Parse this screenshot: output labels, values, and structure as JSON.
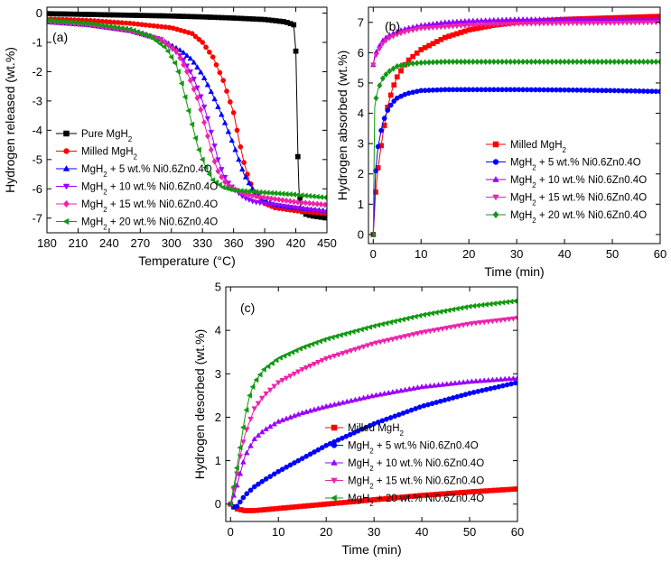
{
  "chart_data": [
    {
      "panel": "(a)",
      "type": "line",
      "xlabel": "Temperature (°C)",
      "ylabel": "Hydrogen released (wt.%)",
      "xlim": [
        180,
        450
      ],
      "ylim": [
        -7.5,
        0.2
      ],
      "xticks": [
        180,
        210,
        240,
        270,
        300,
        330,
        360,
        390,
        420,
        450
      ],
      "yticks": [
        0,
        -1,
        -2,
        -3,
        -4,
        -5,
        -6,
        -7
      ],
      "legend_position": "bottom-left",
      "series": [
        {
          "name": "Pure MgH2",
          "label_main": "Pure MgH",
          "label_sub": "2",
          "label_tail": "",
          "color": "#000000",
          "marker": "square",
          "x": [
            180,
            210,
            240,
            270,
            300,
            330,
            360,
            390,
            410,
            418,
            420,
            421,
            422,
            423,
            425,
            428,
            435,
            450
          ],
          "y": [
            -0.02,
            -0.04,
            -0.06,
            -0.08,
            -0.1,
            -0.13,
            -0.17,
            -0.22,
            -0.3,
            -0.4,
            -1.3,
            -3.0,
            -4.9,
            -6.0,
            -6.7,
            -6.85,
            -6.92,
            -7.0
          ]
        },
        {
          "name": "Milled MgH2",
          "label_main": "Milled MgH",
          "label_sub": "2",
          "label_tail": "",
          "color": "#ff0000",
          "marker": "circle",
          "x": [
            180,
            220,
            260,
            300,
            320,
            330,
            340,
            350,
            360,
            365,
            370,
            375,
            380,
            390,
            400,
            420,
            450
          ],
          "y": [
            -0.2,
            -0.25,
            -0.35,
            -0.5,
            -0.7,
            -1.0,
            -1.5,
            -2.3,
            -3.4,
            -4.3,
            -5.1,
            -5.7,
            -6.1,
            -6.5,
            -6.65,
            -6.75,
            -6.85
          ]
        },
        {
          "name": "MgH2 + 5 wt.% Ni0.6Zn0.4O",
          "label_main": "MgH",
          "label_sub": "2",
          "label_tail": " + 5 wt.% Ni0.6Zn0.4O",
          "color": "#0000ff",
          "marker": "triangle",
          "x": [
            180,
            220,
            260,
            290,
            310,
            320,
            330,
            340,
            350,
            360,
            365,
            370,
            380,
            390,
            400,
            420,
            450
          ],
          "y": [
            -0.3,
            -0.4,
            -0.6,
            -0.9,
            -1.3,
            -1.6,
            -2.1,
            -2.8,
            -3.6,
            -4.5,
            -5.0,
            -5.5,
            -6.1,
            -6.4,
            -6.55,
            -6.65,
            -6.75
          ]
        },
        {
          "name": "MgH2 + 10 wt.% Ni0.6Zn0.4O",
          "label_main": "MgH",
          "label_sub": "2",
          "label_tail": " + 10 wt.% Ni0.6Zn0.4O",
          "color": "#9900ff",
          "marker": "triangle-down",
          "x": [
            180,
            220,
            260,
            290,
            310,
            320,
            330,
            335,
            340,
            345,
            350,
            355,
            360,
            370,
            380,
            400,
            420,
            450
          ],
          "y": [
            -0.3,
            -0.4,
            -0.6,
            -0.9,
            -1.5,
            -2.1,
            -3.0,
            -3.6,
            -4.3,
            -5.0,
            -5.5,
            -5.8,
            -6.0,
            -6.3,
            -6.45,
            -6.55,
            -6.65,
            -6.8
          ]
        },
        {
          "name": "MgH2 + 15 wt.% Ni0.6Zn0.4O",
          "label_main": "MgH",
          "label_sub": "2",
          "label_tail": " + 15 wt.% Ni0.6Zn0.4O",
          "color": "#ee22aa",
          "marker": "diamond",
          "x": [
            180,
            220,
            260,
            290,
            305,
            315,
            325,
            330,
            335,
            340,
            345,
            350,
            355,
            360,
            370,
            380,
            400,
            420,
            450
          ],
          "y": [
            -0.3,
            -0.4,
            -0.6,
            -0.9,
            -1.3,
            -2.0,
            -2.9,
            -3.5,
            -4.2,
            -4.9,
            -5.4,
            -5.7,
            -5.9,
            -6.0,
            -6.15,
            -6.25,
            -6.35,
            -6.45,
            -6.55
          ]
        },
        {
          "name": "MgH2 + 20 wt.% Ni0.6Zn0.4O",
          "label_main": "MgH",
          "label_sub": "2",
          "label_tail": " + 20 wt.% Ni0.6Zn0.4O",
          "color": "#119911",
          "marker": "triangle-left",
          "x": [
            180,
            220,
            260,
            280,
            295,
            305,
            310,
            315,
            320,
            325,
            330,
            335,
            340,
            350,
            360,
            380,
            400,
            420,
            450
          ],
          "y": [
            -0.25,
            -0.35,
            -0.55,
            -0.8,
            -1.2,
            -1.8,
            -2.4,
            -3.1,
            -3.8,
            -4.5,
            -5.0,
            -5.4,
            -5.7,
            -5.95,
            -6.05,
            -6.1,
            -6.15,
            -6.2,
            -6.3
          ]
        }
      ]
    },
    {
      "panel": "(b)",
      "type": "line",
      "xlabel": "Time (min)",
      "ylabel": "Hydrogen absorbed (wt.%)",
      "xlim": [
        -1,
        60
      ],
      "ylim": [
        -0.3,
        7.5
      ],
      "xticks": [
        0,
        10,
        20,
        30,
        40,
        50,
        60
      ],
      "yticks": [
        0,
        1,
        2,
        3,
        4,
        5,
        6,
        7
      ],
      "legend_position": "bottom-right",
      "series": [
        {
          "name": "Milled MgH2",
          "label_main": "Milled MgH",
          "label_sub": "2",
          "label_tail": "",
          "color": "#ff0000",
          "marker": "square",
          "x": [
            0,
            0.5,
            1,
            2,
            3,
            4,
            5,
            7,
            10,
            15,
            20,
            25,
            30,
            40,
            50,
            60
          ],
          "y": [
            0,
            1.4,
            2.2,
            3.3,
            4.2,
            4.8,
            5.2,
            5.7,
            6.1,
            6.5,
            6.75,
            6.9,
            7.0,
            7.1,
            7.15,
            7.2
          ]
        },
        {
          "name": "MgH2 + 5 wt.% Ni0.6Zn0.4O",
          "label_main": "MgH",
          "label_sub": "2",
          "label_tail": " + 5 wt.% Ni0.6Zn0.4O",
          "color": "#0000ff",
          "marker": "circle",
          "x": [
            0,
            0.5,
            1,
            2,
            3,
            4,
            5,
            7,
            10,
            15,
            20,
            30,
            40,
            50,
            60
          ],
          "y": [
            0,
            2.1,
            2.9,
            3.7,
            4.1,
            4.35,
            4.5,
            4.65,
            4.75,
            4.78,
            4.78,
            4.78,
            4.77,
            4.75,
            4.72
          ]
        },
        {
          "name": "MgH2 + 10 wt.% Ni0.6Zn0.4O",
          "label_main": "MgH",
          "label_sub": "2",
          "label_tail": " + 10 wt.% Ni0.6Zn0.4O",
          "color": "#9900ff",
          "marker": "triangle-up",
          "x": [
            0,
            0.3,
            1,
            2,
            3,
            5,
            7,
            10,
            15,
            20,
            30,
            40,
            50,
            60
          ],
          "y": [
            5.6,
            5.9,
            6.15,
            6.4,
            6.55,
            6.7,
            6.8,
            6.9,
            7.0,
            7.05,
            7.1,
            7.1,
            7.1,
            7.1
          ]
        },
        {
          "name": "MgH2 + 15 wt.% Ni0.6Zn0.4O",
          "label_main": "MgH",
          "label_sub": "2",
          "label_tail": " + 15 wt.% Ni0.6Zn0.4O",
          "color": "#ee22aa",
          "marker": "triangle-down",
          "x": [
            0,
            0.3,
            1,
            2,
            3,
            5,
            7,
            10,
            15,
            20,
            30,
            40,
            50,
            60
          ],
          "y": [
            5.6,
            5.8,
            6.05,
            6.3,
            6.45,
            6.6,
            6.7,
            6.8,
            6.85,
            6.9,
            6.95,
            6.97,
            6.98,
            7.0
          ]
        },
        {
          "name": "MgH2 + 20 wt.% Ni0.6Zn0.4O",
          "label_main": "MgH",
          "label_sub": "2",
          "label_tail": " + 20 wt.% Ni0.6Zn0.4O",
          "color": "#119911",
          "marker": "diamond",
          "x": [
            0,
            0.3,
            0.6,
            1,
            2,
            3,
            5,
            7,
            10,
            15,
            20,
            30,
            40,
            50,
            60
          ],
          "y": [
            0,
            4.2,
            4.5,
            4.8,
            5.15,
            5.35,
            5.55,
            5.62,
            5.67,
            5.7,
            5.7,
            5.7,
            5.7,
            5.7,
            5.7
          ]
        }
      ]
    },
    {
      "panel": "(c)",
      "type": "line",
      "xlabel": "Time (min)",
      "ylabel": "Hydrogen desorbed (wt.%)",
      "xlim": [
        -1,
        60
      ],
      "ylim": [
        -0.4,
        5.0
      ],
      "xticks": [
        0,
        10,
        20,
        30,
        40,
        50,
        60
      ],
      "yticks": [
        0,
        1,
        2,
        3,
        4,
        5
      ],
      "legend_position": "bottom-right",
      "series": [
        {
          "name": "Milled MgH2",
          "label_main": "Milled MgH",
          "label_sub": "2",
          "label_tail": "",
          "color": "#ff0000",
          "marker": "square",
          "x": [
            0,
            1,
            3,
            5,
            10,
            15,
            20,
            30,
            40,
            50,
            60
          ],
          "y": [
            0,
            -0.1,
            -0.15,
            -0.15,
            -0.1,
            -0.05,
            0.0,
            0.1,
            0.2,
            0.28,
            0.35
          ]
        },
        {
          "name": "MgH2 + 5 wt.% Ni0.6Zn0.4O",
          "label_main": "MgH",
          "label_sub": "2",
          "label_tail": " + 5 wt.% Ni0.6Zn0.4O",
          "color": "#0000ff",
          "marker": "circle",
          "x": [
            0,
            1,
            2,
            3,
            5,
            7,
            10,
            15,
            20,
            25,
            30,
            40,
            50,
            60
          ],
          "y": [
            0,
            -0.1,
            0.05,
            0.2,
            0.4,
            0.55,
            0.75,
            1.05,
            1.35,
            1.6,
            1.85,
            2.25,
            2.55,
            2.8
          ]
        },
        {
          "name": "MgH2 + 10 wt.% Ni0.6Zn0.4O",
          "label_main": "MgH",
          "label_sub": "2",
          "label_tail": " + 10 wt.% Ni0.6Zn0.4O",
          "color": "#9900ff",
          "marker": "triangle-up",
          "x": [
            0,
            1,
            2,
            3,
            5,
            7,
            10,
            15,
            20,
            30,
            40,
            50,
            60
          ],
          "y": [
            0,
            0.3,
            0.7,
            1.1,
            1.5,
            1.7,
            1.9,
            2.1,
            2.25,
            2.5,
            2.7,
            2.82,
            2.9
          ]
        },
        {
          "name": "MgH2 + 15 wt.% Ni0.6Zn0.4O",
          "label_main": "MgH",
          "label_sub": "2",
          "label_tail": " + 15 wt.% Ni0.6Zn0.4O",
          "color": "#ee22aa",
          "marker": "triangle-down",
          "x": [
            0,
            1,
            2,
            3,
            5,
            7,
            10,
            15,
            20,
            30,
            40,
            50,
            60
          ],
          "y": [
            0,
            0.5,
            1.1,
            1.6,
            2.2,
            2.5,
            2.8,
            3.1,
            3.35,
            3.7,
            3.95,
            4.15,
            4.28
          ]
        },
        {
          "name": "MgH2 + 20 wt.% Ni0.6Zn0.4O",
          "label_main": "MgH",
          "label_sub": "2",
          "label_tail": " + 20 wt.% Ni0.6Zn0.4O",
          "color": "#119911",
          "marker": "triangle-left",
          "x": [
            0,
            1,
            2,
            3,
            4,
            5,
            7,
            10,
            15,
            20,
            30,
            40,
            50,
            60
          ],
          "y": [
            0,
            0.6,
            1.3,
            2.0,
            2.5,
            2.8,
            3.1,
            3.35,
            3.6,
            3.8,
            4.1,
            4.35,
            4.55,
            4.68
          ]
        }
      ]
    }
  ]
}
